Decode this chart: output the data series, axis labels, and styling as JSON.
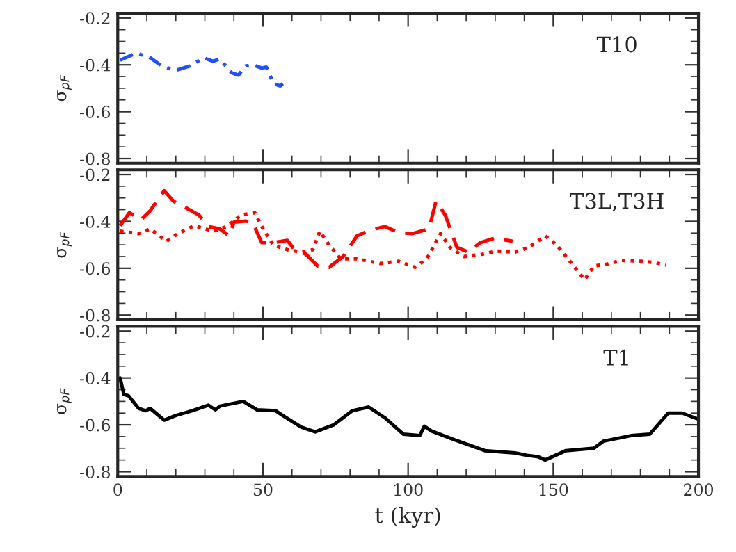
{
  "chart_data": [
    {
      "type": "line",
      "ylabel": "σ$_{pF}$",
      "annotations": [
        "T10"
      ],
      "tick_labels": "y",
      "legend": false,
      "xlim": [
        0,
        200
      ],
      "xticks": [
        0,
        50,
        100,
        150,
        200,
        {
          "value": 10,
          "label": null
        },
        {
          "value": 20,
          "label": null
        },
        {
          "value": 30,
          "label": null
        },
        {
          "value": 40,
          "label": null
        },
        {
          "value": 60,
          "label": null
        },
        {
          "value": 70,
          "label": null
        },
        {
          "value": 80,
          "label": null
        },
        {
          "value": 90,
          "label": null
        },
        {
          "value": 110,
          "label": null
        },
        {
          "value": 120,
          "label": null
        },
        {
          "value": 130,
          "label": null
        },
        {
          "value": 140,
          "label": null
        },
        {
          "value": 160,
          "label": null
        },
        {
          "value": 170,
          "label": null
        },
        {
          "value": 180,
          "label": null
        },
        {
          "value": 190,
          "label": null
        }
      ],
      "ylim": [
        -0.82,
        -0.18
      ],
      "yticks": [
        -0.8,
        -0.6,
        -0.4,
        -0.2,
        {
          "value": -0.75,
          "label": null
        },
        {
          "value": -0.7,
          "label": null
        },
        {
          "value": -0.65,
          "label": null
        },
        {
          "value": -0.55,
          "label": null
        },
        {
          "value": -0.5,
          "label": null
        },
        {
          "value": -0.45,
          "label": null
        },
        {
          "value": -0.35,
          "label": null
        },
        {
          "value": -0.3,
          "label": null
        },
        {
          "value": -0.25,
          "label": null
        }
      ],
      "series": [
        {
          "color": "#1f4fff",
          "line_style": "dashdot",
          "x": [
            0.8,
            6.4,
            11.2,
            15.2,
            20,
            24.8,
            29.6,
            32.8,
            35.2,
            39.2,
            41.6,
            44,
            46.4,
            49.6,
            51.2,
            53.6,
            56,
            56.8
          ],
          "values": [
            -0.38,
            -0.35,
            -0.37,
            -0.405,
            -0.424,
            -0.405,
            -0.37,
            -0.385,
            -0.375,
            -0.434,
            -0.444,
            -0.405,
            -0.4,
            -0.414,
            -0.41,
            -0.48,
            -0.49,
            -0.48
          ]
        }
      ]
    },
    {
      "type": "line",
      "ylabel": "σ$_{pF}$",
      "annotations": [
        "T3L,T3H"
      ],
      "tick_labels": "y",
      "legend": false,
      "xlim": [
        0,
        200
      ],
      "xticks": [
        0,
        50,
        100,
        150,
        200,
        {
          "value": 10,
          "label": null
        },
        {
          "value": 20,
          "label": null
        },
        {
          "value": 30,
          "label": null
        },
        {
          "value": 40,
          "label": null
        },
        {
          "value": 60,
          "label": null
        },
        {
          "value": 70,
          "label": null
        },
        {
          "value": 80,
          "label": null
        },
        {
          "value": 90,
          "label": null
        },
        {
          "value": 110,
          "label": null
        },
        {
          "value": 120,
          "label": null
        },
        {
          "value": 130,
          "label": null
        },
        {
          "value": 140,
          "label": null
        },
        {
          "value": 160,
          "label": null
        },
        {
          "value": 170,
          "label": null
        },
        {
          "value": 180,
          "label": null
        },
        {
          "value": 190,
          "label": null
        }
      ],
      "ylim": [
        -0.82,
        -0.18
      ],
      "yticks": [
        -0.8,
        -0.6,
        -0.4,
        -0.2,
        {
          "value": -0.75,
          "label": null
        },
        {
          "value": -0.7,
          "label": null
        },
        {
          "value": -0.65,
          "label": null
        },
        {
          "value": -0.55,
          "label": null
        },
        {
          "value": -0.5,
          "label": null
        },
        {
          "value": -0.45,
          "label": null
        },
        {
          "value": -0.35,
          "label": null
        },
        {
          "value": -0.3,
          "label": null
        },
        {
          "value": -0.25,
          "label": null
        }
      ],
      "series": [
        {
          "color": "#ff0000",
          "line_style": "dashed",
          "x": [
            0.8,
            4,
            8,
            11.2,
            16,
            19.2,
            23.2,
            28,
            31.2,
            35.2,
            38.4,
            40,
            44,
            46.4,
            49.6,
            53.6,
            58.4,
            60.8,
            64.8,
            68.8,
            72.8,
            77.6,
            82.4,
            87.2,
            92,
            96.8,
            101.6,
            107.2,
            109.6,
            112.8,
            116.8,
            120.8,
            124.8,
            129.6,
            136
          ],
          "values": [
            -0.418,
            -0.363,
            -0.393,
            -0.354,
            -0.269,
            -0.314,
            -0.34,
            -0.373,
            -0.422,
            -0.432,
            -0.462,
            -0.403,
            -0.399,
            -0.403,
            -0.491,
            -0.491,
            -0.481,
            -0.52,
            -0.54,
            -0.59,
            -0.596,
            -0.55,
            -0.462,
            -0.436,
            -0.422,
            -0.448,
            -0.452,
            -0.432,
            -0.314,
            -0.373,
            -0.511,
            -0.531,
            -0.491,
            -0.472,
            -0.485
          ]
        },
        {
          "color": "#ff0000",
          "line_style": "dotted",
          "x": [
            0.8,
            7.2,
            11.2,
            16.8,
            20.8,
            26.4,
            32.8,
            37.6,
            42.4,
            47.2,
            49.6,
            53.6,
            58.4,
            63.2,
            67.2,
            69.6,
            72.8,
            76.8,
            82.4,
            90.4,
            96.8,
            102.4,
            106.4,
            111.2,
            114.4,
            119.2,
            125.6,
            130.4,
            136.8,
            141.6,
            147.2,
            151.2,
            154.4,
            160.8,
            164,
            168,
            173.6,
            180,
            184.8,
            188.8
          ],
          "values": [
            -0.442,
            -0.452,
            -0.432,
            -0.485,
            -0.452,
            -0.418,
            -0.442,
            -0.422,
            -0.373,
            -0.363,
            -0.422,
            -0.501,
            -0.521,
            -0.531,
            -0.521,
            -0.442,
            -0.501,
            -0.56,
            -0.56,
            -0.58,
            -0.57,
            -0.596,
            -0.56,
            -0.452,
            -0.511,
            -0.55,
            -0.54,
            -0.527,
            -0.531,
            -0.511,
            -0.462,
            -0.501,
            -0.55,
            -0.649,
            -0.59,
            -0.584,
            -0.566,
            -0.57,
            -0.576,
            -0.586
          ]
        }
      ]
    },
    {
      "type": "line",
      "ylabel": "σ$_{pF}$",
      "xlabel": "t (kyr)",
      "annotations": [
        "T1"
      ],
      "legend": false,
      "xlim": [
        0,
        200
      ],
      "xticks": [
        0,
        50,
        100,
        150,
        200,
        {
          "value": 10,
          "label": null
        },
        {
          "value": 20,
          "label": null
        },
        {
          "value": 30,
          "label": null
        },
        {
          "value": 40,
          "label": null
        },
        {
          "value": 60,
          "label": null
        },
        {
          "value": 70,
          "label": null
        },
        {
          "value": 80,
          "label": null
        },
        {
          "value": 90,
          "label": null
        },
        {
          "value": 110,
          "label": null
        },
        {
          "value": 120,
          "label": null
        },
        {
          "value": 130,
          "label": null
        },
        {
          "value": 140,
          "label": null
        },
        {
          "value": 160,
          "label": null
        },
        {
          "value": 170,
          "label": null
        },
        {
          "value": 180,
          "label": null
        },
        {
          "value": 190,
          "label": null
        }
      ],
      "ylim": [
        -0.82,
        -0.18
      ],
      "yticks": [
        -0.8,
        -0.6,
        -0.4,
        -0.2,
        {
          "value": -0.75,
          "label": null
        },
        {
          "value": -0.7,
          "label": null
        },
        {
          "value": -0.65,
          "label": null
        },
        {
          "value": -0.55,
          "label": null
        },
        {
          "value": -0.5,
          "label": null
        },
        {
          "value": -0.45,
          "label": null
        },
        {
          "value": -0.35,
          "label": null
        },
        {
          "value": -0.3,
          "label": null
        },
        {
          "value": -0.25,
          "label": null
        }
      ],
      "series": [
        {
          "color": "#000000",
          "line_style": "solid",
          "x": [
            0.8,
            2.1,
            3.7,
            7.2,
            9.6,
            11.2,
            16,
            20,
            25.6,
            31.2,
            33.6,
            35.2,
            43.2,
            48,
            54.4,
            56.8,
            63.2,
            68,
            74.4,
            80.8,
            86.4,
            92,
            98.4,
            104,
            105.6,
            108,
            116,
            126.4,
            136.8,
            140.8,
            144.8,
            147.2,
            154.4,
            164,
            167.2,
            176.8,
            183.2,
            189.6,
            194.4,
            200
          ],
          "values": [
            -0.4,
            -0.47,
            -0.476,
            -0.53,
            -0.54,
            -0.53,
            -0.58,
            -0.56,
            -0.54,
            -0.516,
            -0.536,
            -0.52,
            -0.5,
            -0.536,
            -0.54,
            -0.56,
            -0.61,
            -0.63,
            -0.6,
            -0.54,
            -0.524,
            -0.57,
            -0.64,
            -0.646,
            -0.606,
            -0.626,
            -0.664,
            -0.71,
            -0.72,
            -0.73,
            -0.736,
            -0.75,
            -0.71,
            -0.7,
            -0.67,
            -0.646,
            -0.64,
            -0.55,
            -0.55,
            -0.576
          ]
        }
      ]
    }
  ]
}
